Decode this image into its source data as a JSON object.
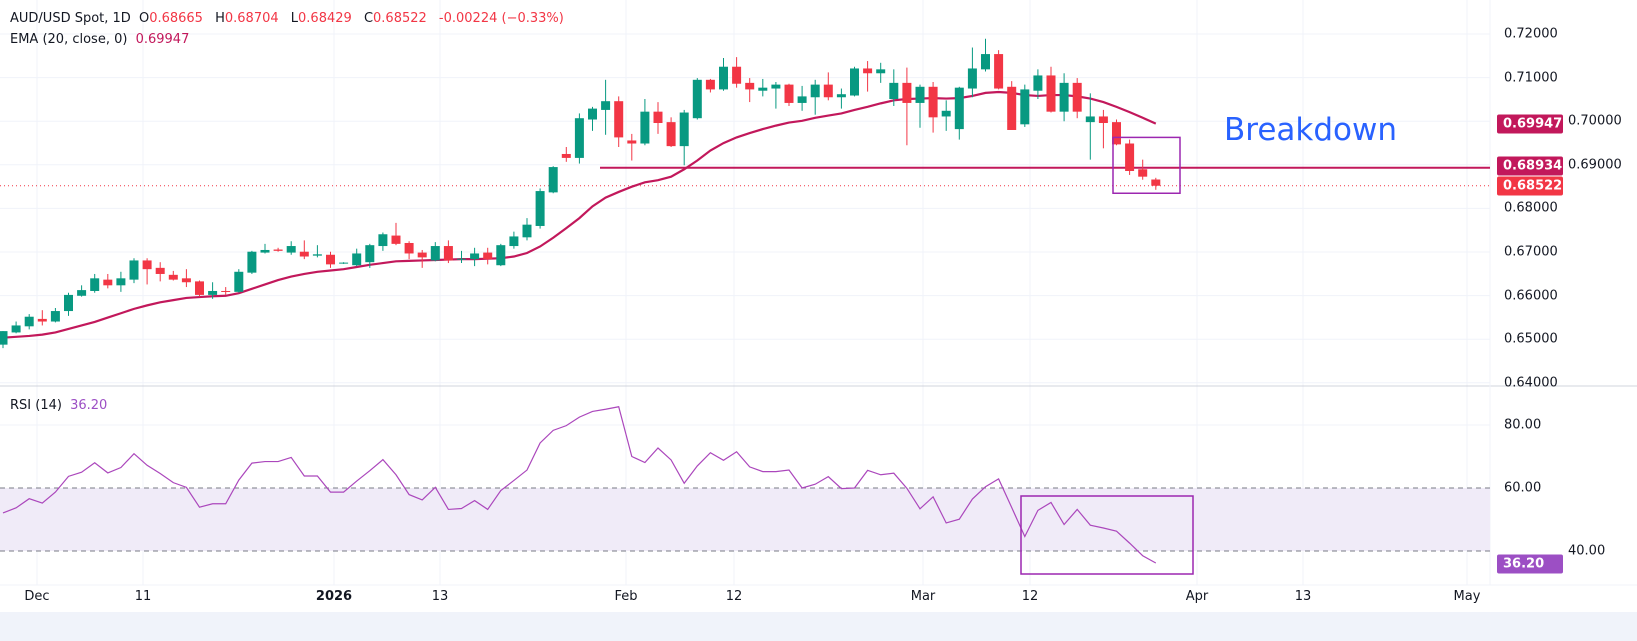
{
  "header": {
    "symbol": "AUD/USD Spot, 1D",
    "open_label": "O",
    "open": "0.68665",
    "high_label": "H",
    "high": "0.68704",
    "low_label": "L",
    "low": "0.68429",
    "close_label": "C",
    "close": "0.68522",
    "change": "-0.00224 (−0.33%)"
  },
  "ema_legend": {
    "label": "EMA (20, close, 0)",
    "value": "0.69947"
  },
  "rsi_legend": {
    "label": "RSI (14)",
    "value": "36.20"
  },
  "annotation": {
    "text": "Breakdown"
  },
  "price_axis": [
    "0.72000",
    "0.71000",
    "0.70000",
    "0.69000",
    "0.68000",
    "0.67000",
    "0.66000",
    "0.65000",
    "0.64000"
  ],
  "price_tags": {
    "ema": "0.69947",
    "support": "0.68934",
    "last": "0.68522"
  },
  "rsi_axis": [
    "80.00",
    "60.00",
    "40.00"
  ],
  "rsi_tag": "36.20",
  "time_axis": [
    "Dec",
    "11",
    "2026",
    "13",
    "Feb",
    "12",
    "Mar",
    "12",
    "Apr",
    "13",
    "May"
  ],
  "colors": {
    "up": "#089981",
    "down": "#f23645",
    "ema": "#c2185b",
    "rsi": "#ab47bc",
    "annotation_box": "#9c27b0",
    "annotation_text": "#2962ff"
  },
  "chart_data": [
    {
      "type": "candlestick",
      "title": "AUD/USD Spot, 1D",
      "ylim": [
        0.64,
        0.72
      ],
      "grid": true,
      "support_level": 0.68934,
      "ohlc": [
        [
          0.6488,
          0.6519,
          0.648,
          0.6519
        ],
        [
          0.6516,
          0.6541,
          0.6514,
          0.6532
        ],
        [
          0.653,
          0.6558,
          0.6523,
          0.6552
        ],
        [
          0.6547,
          0.6567,
          0.6532,
          0.6541
        ],
        [
          0.6541,
          0.6572,
          0.6539,
          0.6565
        ],
        [
          0.6565,
          0.6607,
          0.6554,
          0.6602
        ],
        [
          0.66,
          0.6624,
          0.6598,
          0.6613
        ],
        [
          0.6611,
          0.665,
          0.6607,
          0.664
        ],
        [
          0.6637,
          0.665,
          0.6617,
          0.6624
        ],
        [
          0.6624,
          0.6655,
          0.6609,
          0.664
        ],
        [
          0.6637,
          0.6686,
          0.6629,
          0.6681
        ],
        [
          0.6681,
          0.6686,
          0.6626,
          0.6661
        ],
        [
          0.6664,
          0.6677,
          0.6633,
          0.665
        ],
        [
          0.6648,
          0.6657,
          0.6635,
          0.6637
        ],
        [
          0.664,
          0.6661,
          0.662,
          0.6631
        ],
        [
          0.6633,
          0.6635,
          0.6598,
          0.6602
        ],
        [
          0.6602,
          0.6631,
          0.6593,
          0.6611
        ],
        [
          0.6611,
          0.662,
          0.6602,
          0.6609
        ],
        [
          0.6609,
          0.6661,
          0.6607,
          0.6655
        ],
        [
          0.6653,
          0.6703,
          0.665,
          0.6701
        ],
        [
          0.6699,
          0.6719,
          0.6697,
          0.6705
        ],
        [
          0.6706,
          0.671,
          0.6701,
          0.6703
        ],
        [
          0.6699,
          0.6725,
          0.6694,
          0.6714
        ],
        [
          0.6701,
          0.6727,
          0.6684,
          0.669
        ],
        [
          0.6692,
          0.6716,
          0.6688,
          0.6695
        ],
        [
          0.6694,
          0.6701,
          0.6664,
          0.6672
        ],
        [
          0.6675,
          0.6677,
          0.6673,
          0.6676
        ],
        [
          0.667,
          0.6708,
          0.6668,
          0.6697
        ],
        [
          0.6677,
          0.6719,
          0.6664,
          0.6716
        ],
        [
          0.6714,
          0.6745,
          0.6703,
          0.6741
        ],
        [
          0.6738,
          0.6767,
          0.6716,
          0.6719
        ],
        [
          0.6721,
          0.6725,
          0.6684,
          0.6697
        ],
        [
          0.6699,
          0.6705,
          0.6664,
          0.6688
        ],
        [
          0.6681,
          0.6723,
          0.6679,
          0.6714
        ],
        [
          0.6714,
          0.6727,
          0.6675,
          0.6681
        ],
        [
          0.6683,
          0.6703,
          0.6675,
          0.6685
        ],
        [
          0.6684,
          0.671,
          0.6668,
          0.6697
        ],
        [
          0.6699,
          0.671,
          0.6672,
          0.6684
        ],
        [
          0.667,
          0.6719,
          0.6668,
          0.6716
        ],
        [
          0.6714,
          0.6747,
          0.6708,
          0.6736
        ],
        [
          0.6734,
          0.6778,
          0.6727,
          0.6763
        ],
        [
          0.676,
          0.6846,
          0.6754,
          0.684
        ],
        [
          0.6837,
          0.6897,
          0.6835,
          0.6895
        ],
        [
          0.6925,
          0.6941,
          0.6907,
          0.6916
        ],
        [
          0.6916,
          0.7018,
          0.6903,
          0.7007
        ],
        [
          0.7004,
          0.7033,
          0.6978,
          0.7029
        ],
        [
          0.7026,
          0.7095,
          0.6969,
          0.7046
        ],
        [
          0.7046,
          0.7057,
          0.6941,
          0.6963
        ],
        [
          0.6956,
          0.6971,
          0.691,
          0.6949
        ],
        [
          0.6949,
          0.7051,
          0.6945,
          0.7022
        ],
        [
          0.7022,
          0.7044,
          0.6971,
          0.6996
        ],
        [
          0.6998,
          0.7009,
          0.6941,
          0.6943
        ],
        [
          0.6943,
          0.7026,
          0.6899,
          0.702
        ],
        [
          0.7007,
          0.7099,
          0.7004,
          0.7095
        ],
        [
          0.7095,
          0.7097,
          0.7066,
          0.7073
        ],
        [
          0.7073,
          0.7145,
          0.707,
          0.7125
        ],
        [
          0.7125,
          0.7147,
          0.7077,
          0.7086
        ],
        [
          0.7088,
          0.7099,
          0.7044,
          0.7073
        ],
        [
          0.707,
          0.7097,
          0.7057,
          0.7077
        ],
        [
          0.7075,
          0.709,
          0.7029,
          0.7084
        ],
        [
          0.7084,
          0.7086,
          0.7035,
          0.7042
        ],
        [
          0.7042,
          0.7081,
          0.7024,
          0.7057
        ],
        [
          0.7055,
          0.7095,
          0.7015,
          0.7084
        ],
        [
          0.7084,
          0.7112,
          0.7048,
          0.7055
        ],
        [
          0.7055,
          0.7075,
          0.7029,
          0.7062
        ],
        [
          0.7059,
          0.7125,
          0.7057,
          0.7121
        ],
        [
          0.7121,
          0.7138,
          0.7068,
          0.711
        ],
        [
          0.711,
          0.7134,
          0.7088,
          0.7119
        ],
        [
          0.7051,
          0.7119,
          0.7035,
          0.7088
        ],
        [
          0.7088,
          0.7123,
          0.6945,
          0.7042
        ],
        [
          0.7042,
          0.7084,
          0.6985,
          0.7079
        ],
        [
          0.7079,
          0.709,
          0.6974,
          0.7009
        ],
        [
          0.7011,
          0.7048,
          0.6978,
          0.7024
        ],
        [
          0.6982,
          0.7079,
          0.6958,
          0.7077
        ],
        [
          0.7075,
          0.7169,
          0.7055,
          0.7121
        ],
        [
          0.7119,
          0.7189,
          0.7114,
          0.7154
        ],
        [
          0.7154,
          0.7163,
          0.7073,
          0.7075
        ],
        [
          0.7079,
          0.7092,
          0.698,
          0.698
        ],
        [
          0.6993,
          0.7084,
          0.6987,
          0.7073
        ],
        [
          0.707,
          0.7119,
          0.7051,
          0.7105
        ],
        [
          0.7105,
          0.7125,
          0.702,
          0.7022
        ],
        [
          0.7022,
          0.711,
          0.7,
          0.7088
        ],
        [
          0.7088,
          0.7099,
          0.7007,
          0.7022
        ],
        [
          0.6998,
          0.7064,
          0.6912,
          0.7011
        ],
        [
          0.7011,
          0.7026,
          0.6938,
          0.6996
        ],
        [
          0.6998,
          0.7004,
          0.6945,
          0.6947
        ],
        [
          0.6949,
          0.6958,
          0.6877,
          0.6886
        ],
        [
          0.689,
          0.6912,
          0.6866,
          0.6873
        ],
        [
          0.68665,
          0.68704,
          0.68429,
          0.68522
        ]
      ],
      "ema": [
        0.6504,
        0.6506,
        0.6508,
        0.6511,
        0.6516,
        0.6524,
        0.6532,
        0.654,
        0.655,
        0.656,
        0.657,
        0.6578,
        0.6585,
        0.659,
        0.6595,
        0.6597,
        0.6599,
        0.66,
        0.6606,
        0.6616,
        0.6626,
        0.6636,
        0.6644,
        0.665,
        0.6655,
        0.6658,
        0.6661,
        0.6666,
        0.6671,
        0.6675,
        0.6679,
        0.668,
        0.6681,
        0.6682,
        0.6683,
        0.6684,
        0.6684,
        0.6685,
        0.6686,
        0.669,
        0.6698,
        0.6713,
        0.6733,
        0.6755,
        0.6778,
        0.6805,
        0.6825,
        0.6838,
        0.685,
        0.686,
        0.6865,
        0.6873,
        0.689,
        0.691,
        0.6933,
        0.695,
        0.6963,
        0.6973,
        0.6982,
        0.699,
        0.6997,
        0.7001,
        0.7008,
        0.7013,
        0.7018,
        0.7026,
        0.7033,
        0.7041,
        0.7048,
        0.7051,
        0.7052,
        0.7053,
        0.7052,
        0.7053,
        0.7058,
        0.7065,
        0.7067,
        0.7065,
        0.706,
        0.7058,
        0.706,
        0.706,
        0.7057,
        0.7052,
        0.7044,
        0.7033,
        0.7021,
        0.7008,
        0.69947
      ]
    },
    {
      "type": "line",
      "title": "RSI (14)",
      "ylim": [
        30,
        90
      ],
      "band": [
        40,
        60
      ],
      "values": [
        52.1,
        53.7,
        56.6,
        55.2,
        58.7,
        63.7,
        65.0,
        68.0,
        64.8,
        66.5,
        70.9,
        67.2,
        64.6,
        61.7,
        60.2,
        53.9,
        55.0,
        55.0,
        62.5,
        67.9,
        68.4,
        68.4,
        69.7,
        63.8,
        63.8,
        58.7,
        58.7,
        62.2,
        65.5,
        69.0,
        64.2,
        57.9,
        56.2,
        60.2,
        53.2,
        53.5,
        56.0,
        53.2,
        59.2,
        62.4,
        65.7,
        74.3,
        78.3,
        79.8,
        82.5,
        84.3,
        85.0,
        85.8,
        70.0,
        68.1,
        72.7,
        68.9,
        61.5,
        67.0,
        71.2,
        68.8,
        71.5,
        66.7,
        65.2,
        65.2,
        65.7,
        60.0,
        61.2,
        63.6,
        59.8,
        60.0,
        65.6,
        64.2,
        64.7,
        59.9,
        53.4,
        57.2,
        48.9,
        50.1,
        56.5,
        60.4,
        62.9,
        53.8,
        44.6,
        52.9,
        55.4,
        48.4,
        53.2,
        48.2,
        47.3,
        46.3,
        42.5,
        38.5,
        36.2
      ]
    }
  ]
}
